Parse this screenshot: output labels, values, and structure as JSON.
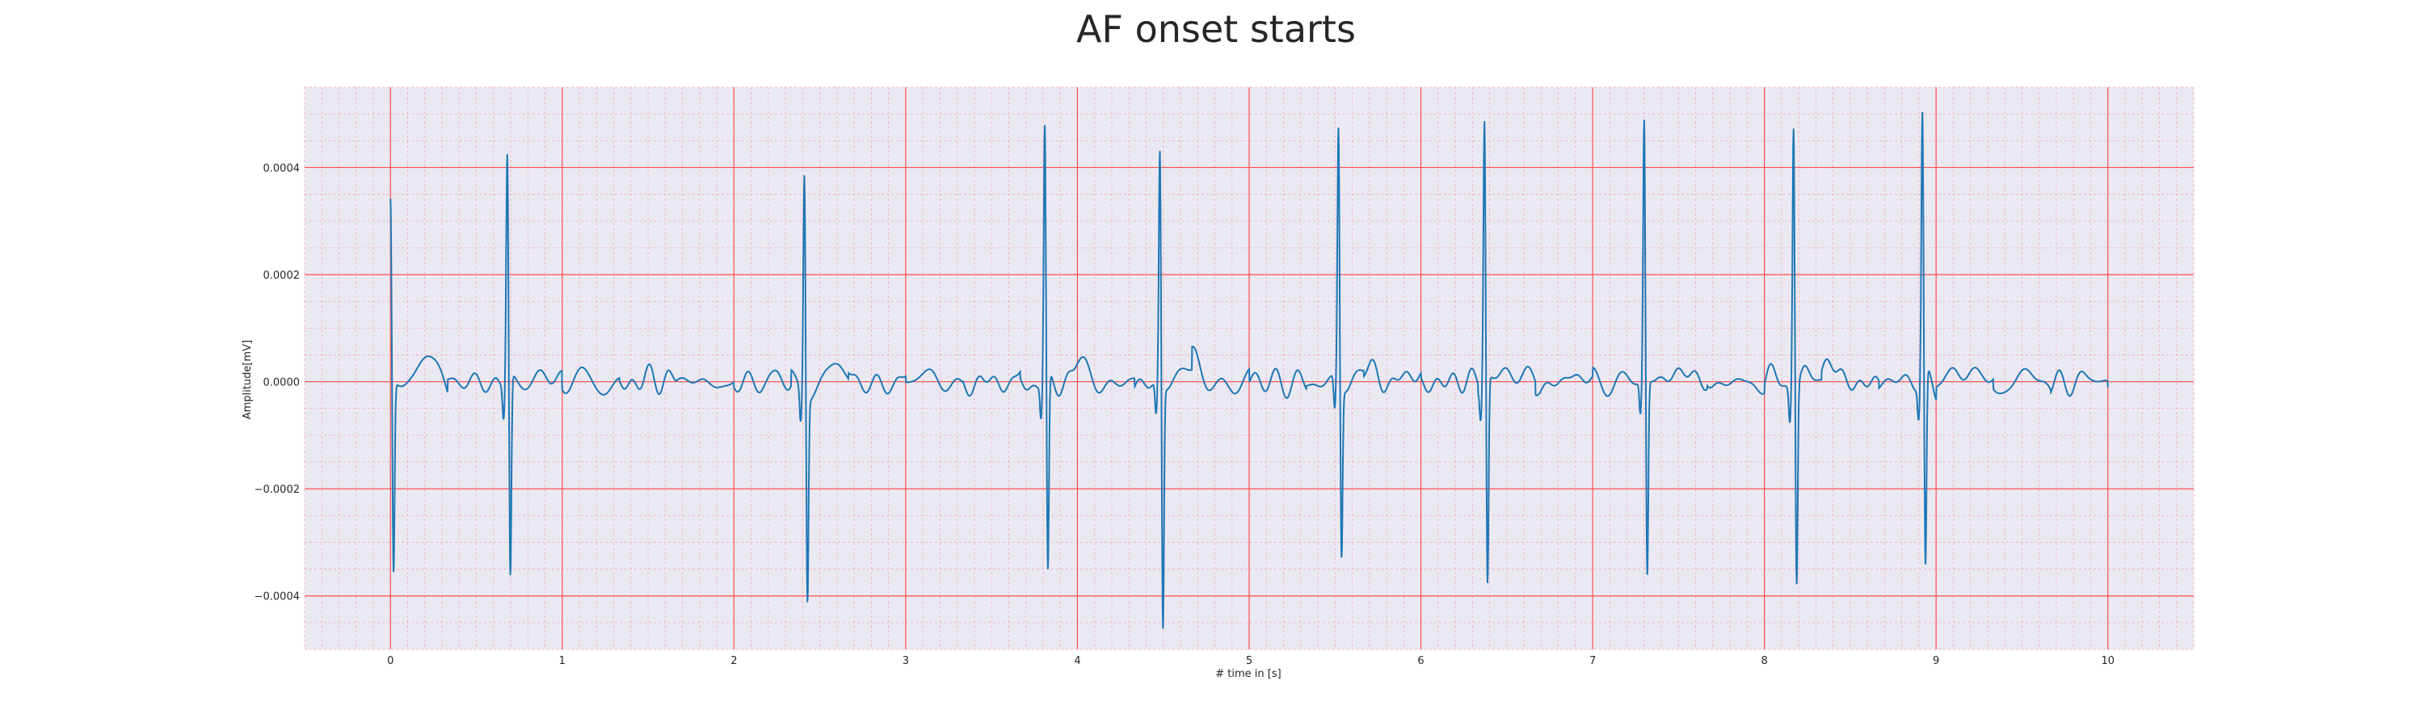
{
  "chart_data": {
    "type": "line",
    "title": "AF onset starts",
    "xlabel": "# time in [s]",
    "ylabel": "Amplitude[mV]",
    "xlim": [
      -0.5,
      10.5
    ],
    "ylim": [
      -0.0005,
      0.00055
    ],
    "x_ticks": [
      0,
      1,
      2,
      3,
      4,
      5,
      6,
      7,
      8,
      9,
      10
    ],
    "y_ticks": [
      0.0004,
      0.0002,
      0.0,
      -0.0002,
      -0.0004
    ],
    "y_tick_labels": [
      "0.0004",
      "0.0002",
      "0.0000",
      "−0.0002",
      "−0.0004"
    ],
    "grid": {
      "major": true,
      "minor": true,
      "major_color": "#ff4d4d",
      "minor_color": "#f5a8b4"
    },
    "plot_background": "#eae9f2",
    "series": [
      {
        "color": "#1f77b4",
        "beats": [
          {
            "t": 0.0,
            "r": 0.00034,
            "s": -0.00036
          },
          {
            "t": 0.68,
            "r": 0.00042,
            "s": -0.00038
          },
          {
            "t": 2.41,
            "r": 0.00042,
            "s": -0.00038
          },
          {
            "t": 3.81,
            "r": 0.00048,
            "s": -0.00037
          },
          {
            "t": 4.48,
            "r": 0.00044,
            "s": -0.000455
          },
          {
            "t": 5.52,
            "r": 0.00048,
            "s": -0.00032
          },
          {
            "t": 6.37,
            "r": 0.00049,
            "s": -0.00039
          },
          {
            "t": 7.3,
            "r": 0.00049,
            "s": -0.00037
          },
          {
            "t": 8.17,
            "r": 0.0005,
            "s": -0.00037
          },
          {
            "t": 8.92,
            "r": 0.0005,
            "s": -0.00037
          }
        ],
        "t_end": 10.0,
        "baseline_noise_amplitude": 5e-05
      }
    ]
  }
}
